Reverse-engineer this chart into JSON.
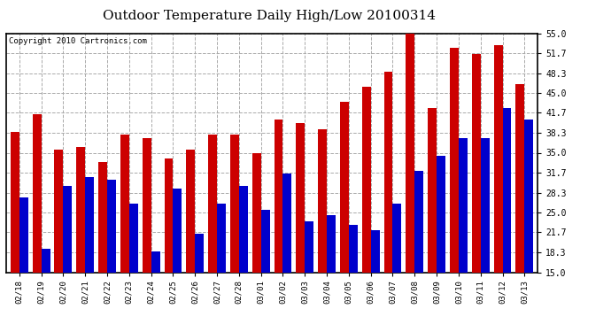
{
  "title": "Outdoor Temperature Daily High/Low 20100314",
  "copyright": "Copyright 2010 Cartronics.com",
  "dates": [
    "02/18",
    "02/19",
    "02/20",
    "02/21",
    "02/22",
    "02/23",
    "02/24",
    "02/25",
    "02/26",
    "02/27",
    "02/28",
    "03/01",
    "03/02",
    "03/03",
    "03/04",
    "03/05",
    "03/06",
    "03/07",
    "03/08",
    "03/09",
    "03/10",
    "03/11",
    "03/12",
    "03/13"
  ],
  "highs": [
    38.5,
    41.5,
    35.5,
    36.0,
    33.5,
    38.0,
    37.5,
    34.0,
    35.5,
    38.0,
    38.0,
    35.0,
    40.5,
    40.0,
    39.0,
    43.5,
    46.0,
    48.5,
    55.5,
    42.5,
    52.5,
    51.5,
    53.0,
    46.5
  ],
  "lows": [
    27.5,
    19.0,
    29.5,
    31.0,
    30.5,
    26.5,
    18.5,
    29.0,
    21.5,
    26.5,
    29.5,
    25.5,
    31.5,
    23.5,
    24.5,
    23.0,
    22.0,
    26.5,
    32.0,
    34.5,
    37.5,
    37.5,
    42.5,
    40.5
  ],
  "high_color": "#cc0000",
  "low_color": "#0000cc",
  "bg_color": "#ffffff",
  "plot_bg_color": "#ffffff",
  "grid_color": "#aaaaaa",
  "ymin": 15.0,
  "ymax": 55.0,
  "yticks": [
    15.0,
    18.3,
    21.7,
    25.0,
    28.3,
    31.7,
    35.0,
    38.3,
    41.7,
    45.0,
    48.3,
    51.7,
    55.0
  ],
  "bar_width": 0.4,
  "title_fontsize": 11,
  "copyright_fontsize": 6.5,
  "tick_fontsize": 6.5,
  "ytick_fontsize": 7
}
